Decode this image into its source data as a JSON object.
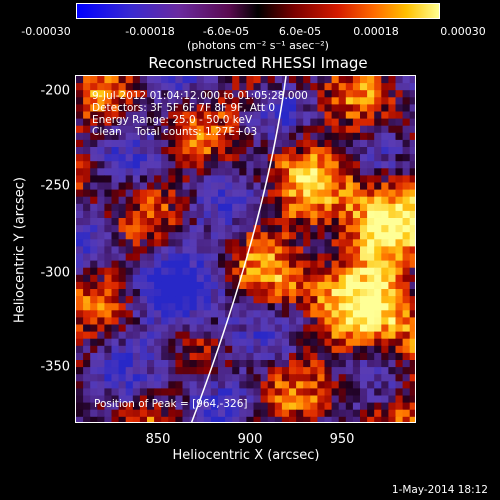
{
  "colorbar": {
    "ticks": [
      "-0.00030",
      "-0.00018",
      "-6.0e-05",
      "6.0e-05",
      "0.00018",
      "0.00030"
    ],
    "units": "(photons cm⁻² s⁻¹ asec⁻²)"
  },
  "title": "Reconstructed RHESSI Image",
  "info": {
    "line1": "9-Jul-2012 01:04:12.000 to 01:05:28.000",
    "line2": "Detectors: 3F 5F 6F 7F 8F 9F, Att 0",
    "line3": "Energy Range: 25.0 - 50.0 keV",
    "line4": "Clean    Total counts: 1.27E+03"
  },
  "peak": "Position of Peak = [964,-326]",
  "axes": {
    "xlabel": "Heliocentric X (arcsec)",
    "ylabel": "Heliocentric Y (arcsec)",
    "xticks": [
      "850",
      "900",
      "950"
    ],
    "yticks": [
      "-200",
      "-250",
      "-300",
      "-350"
    ]
  },
  "footer": {
    "date": "1-May-2014 18:12"
  },
  "colors": {
    "background": "#000000",
    "limb_line": "#ffffff"
  }
}
